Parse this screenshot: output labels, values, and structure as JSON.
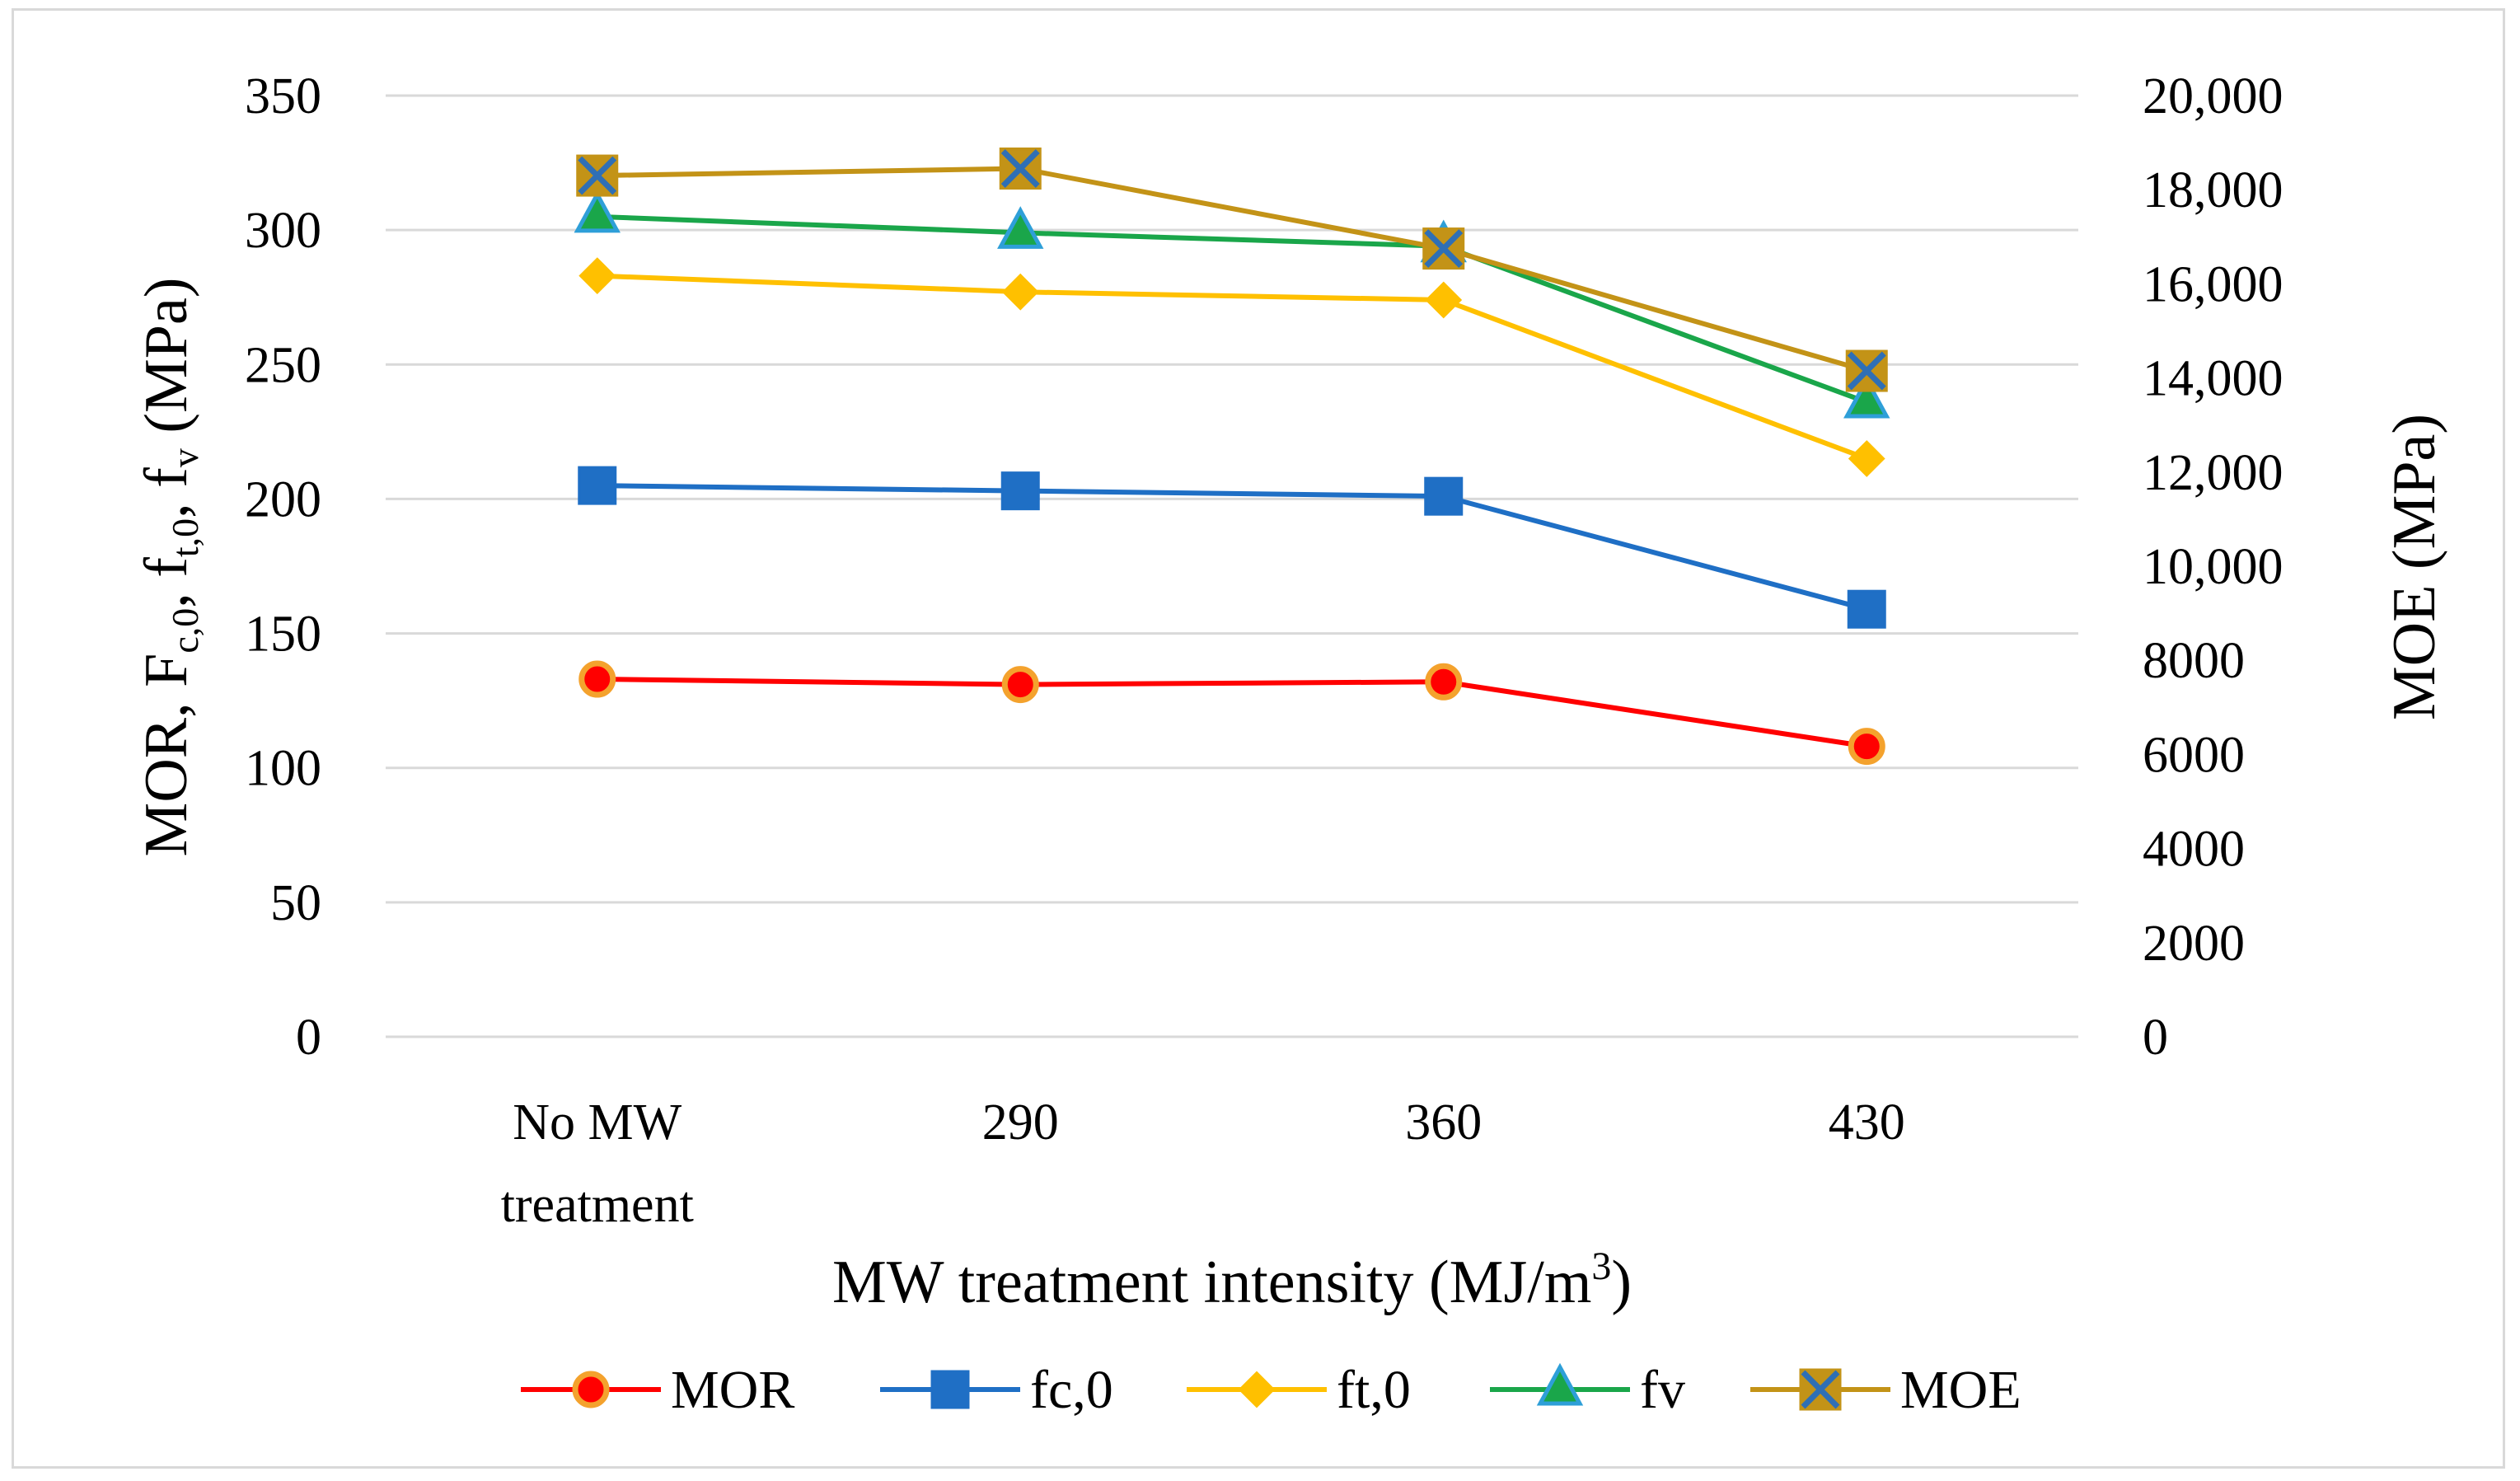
{
  "chart_data": {
    "type": "line",
    "categories": [
      [
        "No MW",
        "treatment"
      ],
      [
        "290"
      ],
      [
        "360"
      ],
      [
        "430"
      ]
    ],
    "x_axis_title": {
      "main": "MW treatment intensity (MJ/m",
      "sup": "3",
      "end": ")"
    },
    "y_left": {
      "ylim": [
        0,
        350
      ],
      "ticks": [
        "0",
        "50",
        "100",
        "150",
        "200",
        "250",
        "300",
        "350"
      ],
      "title_parts": [
        {
          "t": "MOR, F"
        },
        {
          "t": "c,0",
          "sub": true
        },
        {
          "t": ", f"
        },
        {
          "t": "t,0",
          "sub": true
        },
        {
          "t": ", f"
        },
        {
          "t": "v",
          "sub": true
        },
        {
          "t": " (MPa)"
        }
      ]
    },
    "y_right": {
      "ylim": [
        0,
        20000
      ],
      "ticks": [
        "0",
        "2000",
        "4000",
        "6000",
        "8000",
        "10,000",
        "12,000",
        "14,000",
        "16,000",
        "18,000",
        "20,000"
      ],
      "title": "MOE (MPa)"
    },
    "series": [
      {
        "name": "MOR",
        "axis": "left",
        "values": [
          133,
          131,
          132,
          108
        ],
        "color": "#ff0000",
        "marker": "circle",
        "marker_fill": "#ff0000",
        "marker_edge": "#f4a22d"
      },
      {
        "name": "fc,0",
        "axis": "left",
        "values": [
          205,
          203,
          201,
          159
        ],
        "color": "#1f6fc5",
        "marker": "square",
        "marker_fill": "#1f6fc5",
        "marker_edge": "#1f6fc5"
      },
      {
        "name": "ft,0",
        "axis": "left",
        "values": [
          283,
          277,
          274,
          215
        ],
        "color": "#ffc000",
        "marker": "diamond",
        "marker_fill": "#ffc000",
        "marker_edge": "#ffc000"
      },
      {
        "name": "fv",
        "axis": "left",
        "values": [
          305,
          299,
          294,
          236
        ],
        "color": "#1aa64a",
        "marker": "triangle",
        "marker_fill": "#1aa64a",
        "marker_edge": "#2e9fd8"
      },
      {
        "name": "MOE",
        "axis": "right",
        "values": [
          18300,
          18450,
          16750,
          14150
        ],
        "color": "#c39317",
        "marker": "xsquare",
        "marker_fill": "#c39317",
        "marker_edge": "#2f6fb5"
      }
    ],
    "grid": true,
    "legend": "bottom"
  }
}
